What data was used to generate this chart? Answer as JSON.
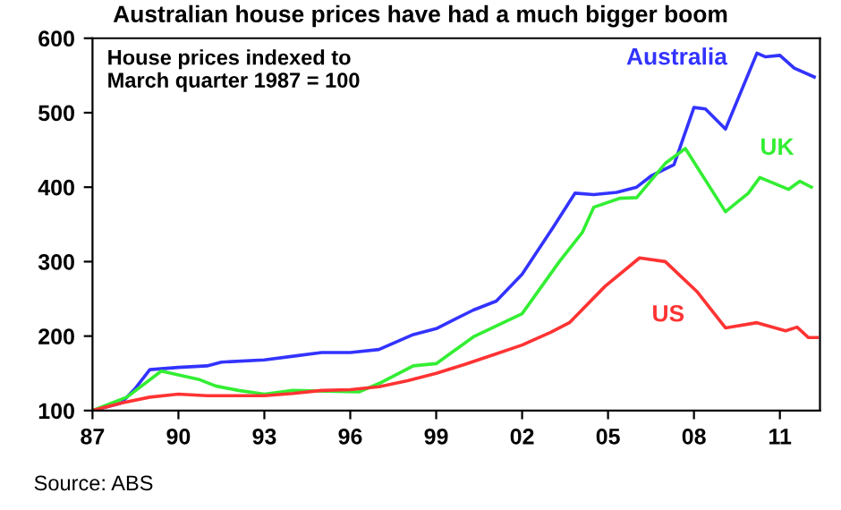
{
  "chart_data": {
    "type": "line",
    "title": "Australian house prices have had a much bigger boom",
    "annotations": [
      "House prices indexed to\nMarch quarter 1987 = 100",
      "Source: ABS"
    ],
    "xlim": [
      1987,
      2012.4
    ],
    "ylim": [
      100,
      600
    ],
    "xticks": [
      {
        "value": 1987,
        "label": "87"
      },
      {
        "value": 1990,
        "label": "90"
      },
      {
        "value": 1993,
        "label": "93"
      },
      {
        "value": 1996,
        "label": "96"
      },
      {
        "value": 1999,
        "label": "99"
      },
      {
        "value": 2002,
        "label": "02"
      },
      {
        "value": 2005,
        "label": "05"
      },
      {
        "value": 2008,
        "label": "08"
      },
      {
        "value": 2011,
        "label": "11"
      }
    ],
    "yticks": [
      100,
      200,
      300,
      400,
      500,
      600
    ],
    "grid": false,
    "legend": false,
    "marker": "none",
    "line_style": "solid",
    "series": [
      {
        "name": "Australia",
        "color": "#3333ff",
        "x": [
          1987,
          1988,
          1988.5,
          1989,
          1990,
          1991,
          1991.5,
          1993,
          1994,
          1995,
          1996,
          1997,
          1998.2,
          1999,
          2000.3,
          2001.1,
          2002,
          2003.1,
          2003.85,
          2004.5,
          2005.3,
          2006,
          2006.5,
          2007.3,
          2008,
          2008.4,
          2009.1,
          2010.2,
          2010.5,
          2011,
          2011.5,
          2012.2
        ],
        "values": [
          100,
          110,
          130,
          155,
          158,
          160,
          165,
          168,
          173,
          178,
          178,
          182,
          202,
          210,
          235,
          247,
          283,
          347,
          392,
          390,
          393,
          400,
          415,
          430,
          507,
          505,
          478,
          580,
          575,
          577,
          560,
          548
        ]
      },
      {
        "name": "UK",
        "color": "#33ee33",
        "x": [
          1987,
          1988.2,
          1989.4,
          1990.7,
          1991.3,
          1992.1,
          1993,
          1994,
          1996.3,
          1997.1,
          1998.2,
          1999,
          2000.3,
          2002,
          2003.3,
          2004.1,
          2004.5,
          2005.4,
          2006,
          2007,
          2007.7,
          2009.1,
          2009.9,
          2010.3,
          2011.3,
          2011.7,
          2012.1
        ],
        "values": [
          100,
          118,
          153,
          142,
          133,
          127,
          122,
          127,
          125,
          138,
          160,
          163,
          199,
          230,
          300,
          339,
          373,
          385,
          386,
          432,
          452,
          367,
          392,
          413,
          397,
          408,
          400
        ]
      },
      {
        "name": "US",
        "color": "#ff3333",
        "x": [
          1987,
          1988,
          1989,
          1990,
          1991,
          1992,
          1993,
          1994,
          1995,
          1996,
          1997,
          1998,
          1999,
          2000,
          2001,
          2002,
          2003,
          2003.65,
          2004.9,
          2006.1,
          2007,
          2008.1,
          2009.1,
          2010.2,
          2011.2,
          2011.6,
          2012.0,
          2012.3
        ],
        "values": [
          100,
          110,
          118,
          122,
          120,
          120,
          120,
          123,
          127,
          128,
          132,
          140,
          150,
          162,
          175,
          188,
          205,
          218,
          267,
          305,
          300,
          260,
          211,
          218,
          207,
          212,
          198,
          198
        ]
      }
    ]
  }
}
